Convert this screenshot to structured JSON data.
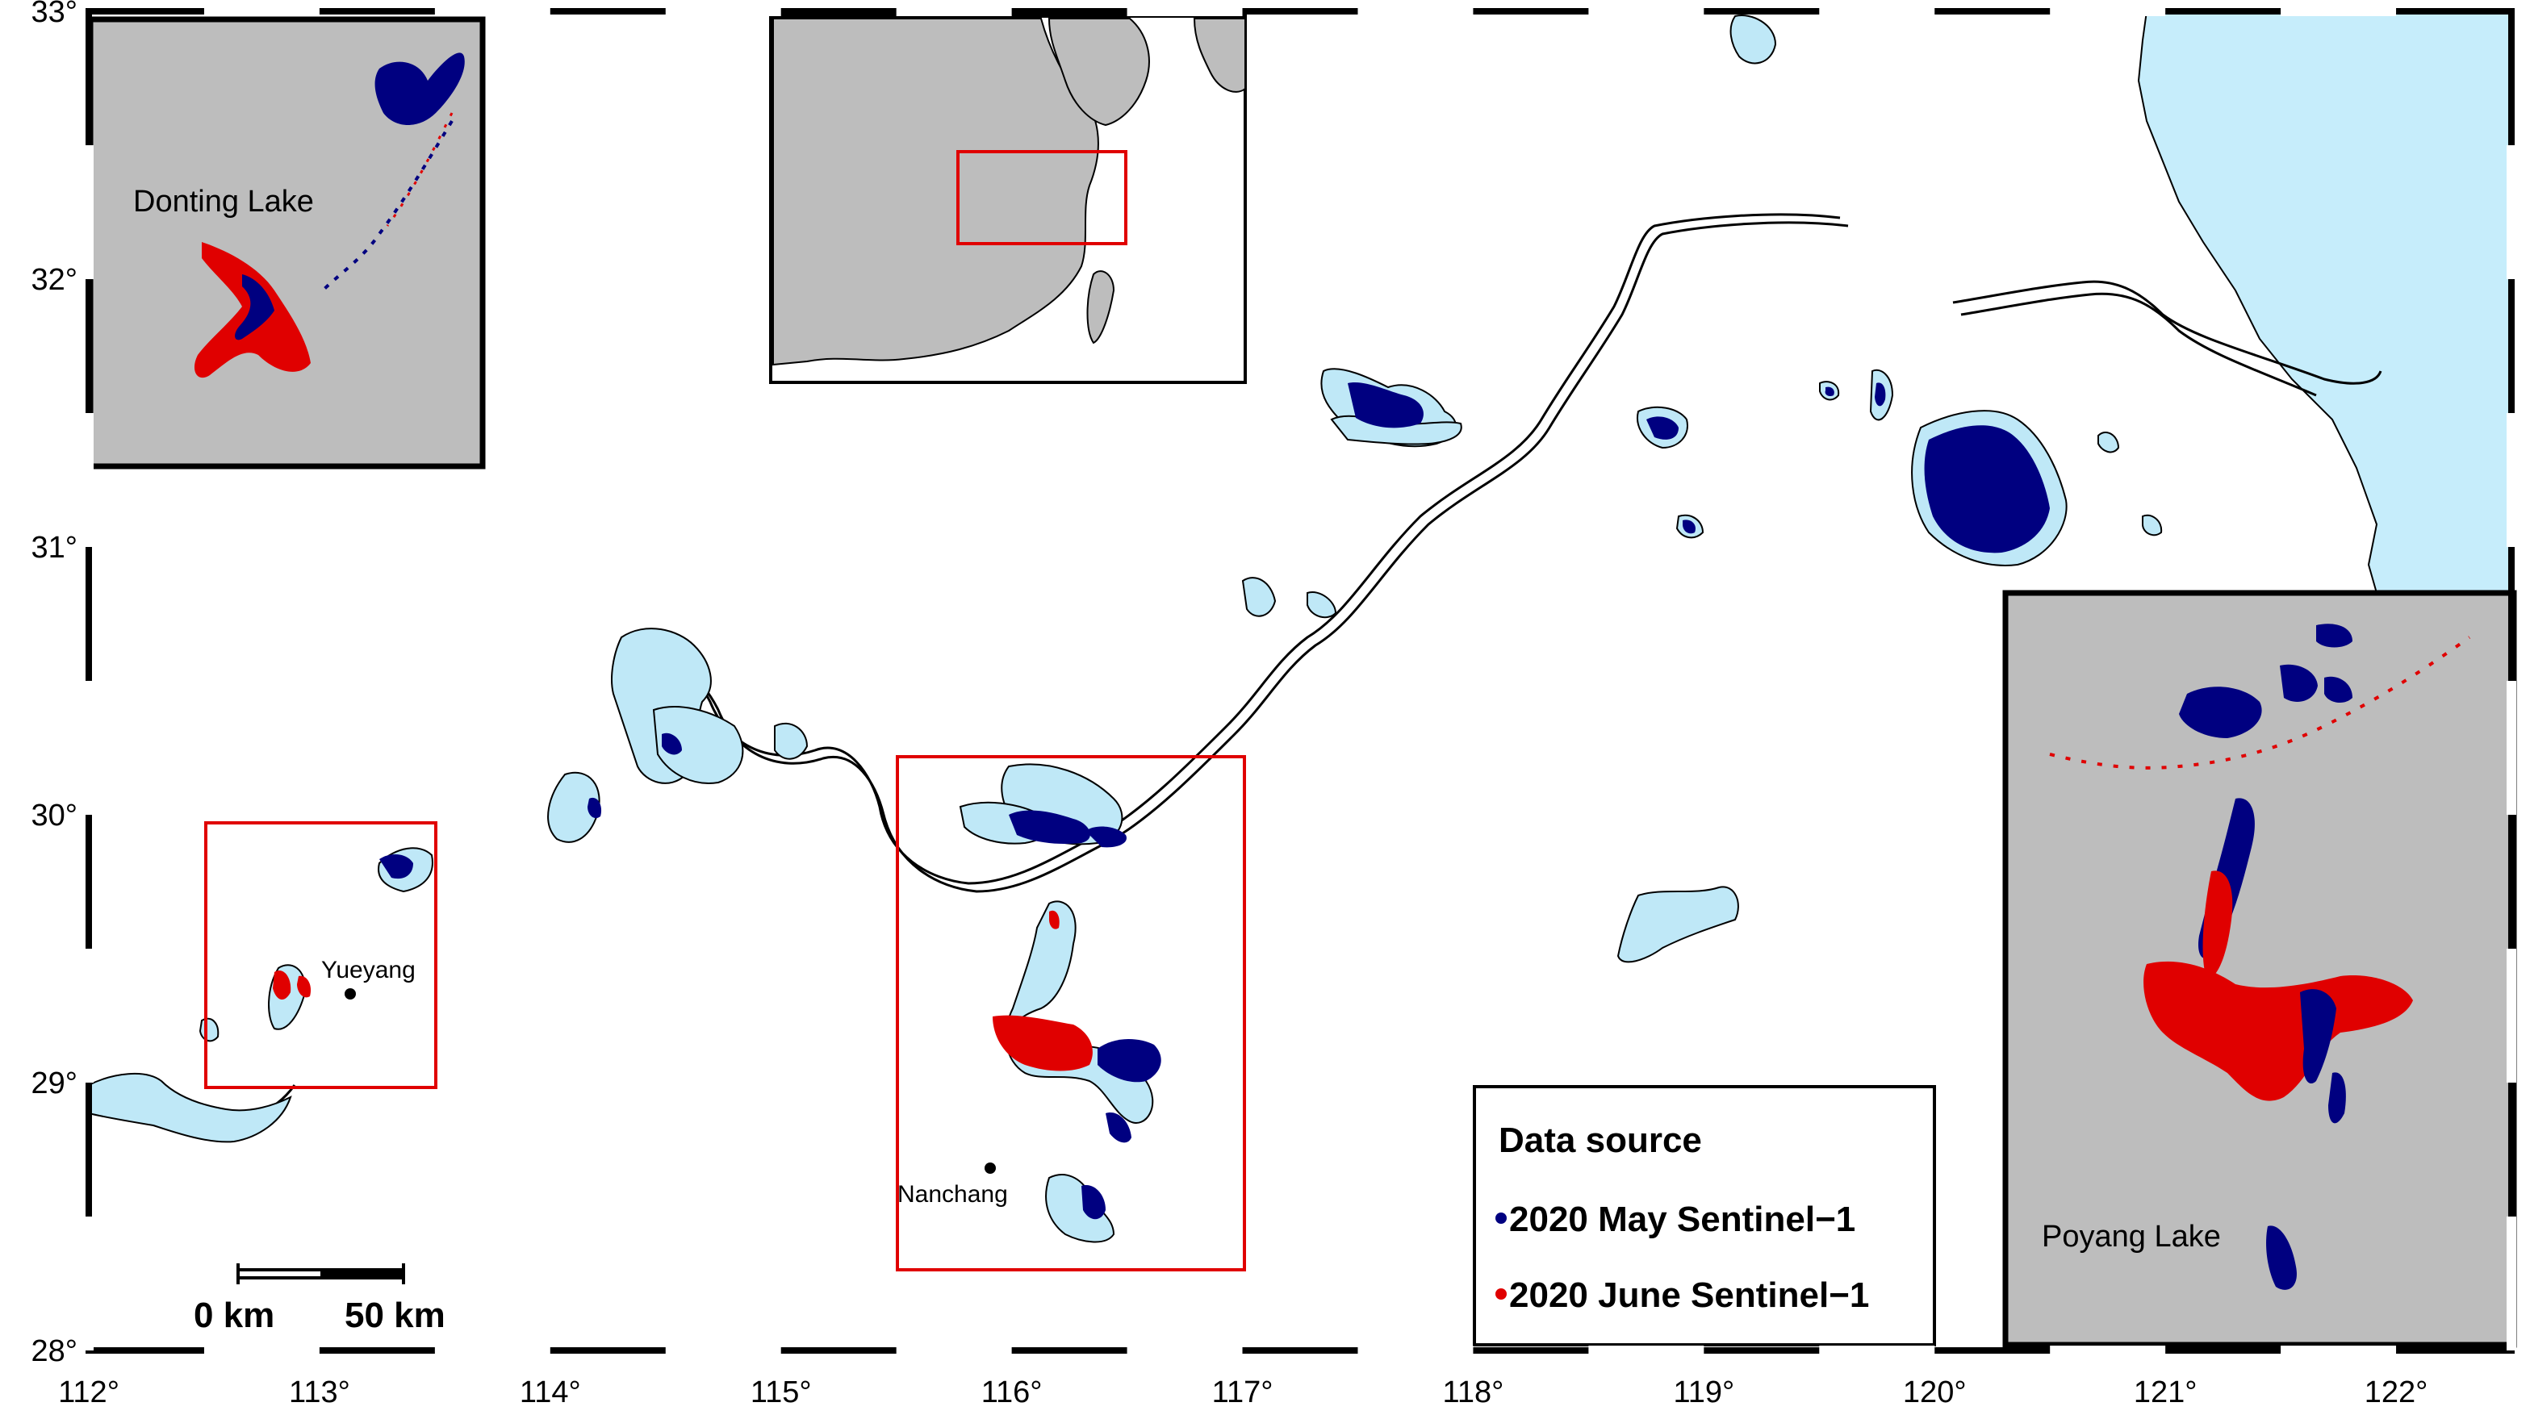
{
  "map": {
    "longitude_ticks": [
      "112°",
      "113°",
      "114°",
      "115°",
      "116°",
      "117°",
      "118°",
      "119°",
      "120°",
      "121°",
      "122°"
    ],
    "latitude_ticks": [
      "28°",
      "29°",
      "30°",
      "31°",
      "32°",
      "33°"
    ],
    "colors": {
      "water": "#bfe8f7",
      "sea": "#c6edfb",
      "may": "#000080",
      "june": "#e00000",
      "inset_bg": "#bdbdbd",
      "highlight_box": "#e00000"
    }
  },
  "labels": {
    "yueyang": "Yueyang",
    "nanchang": "Nanchang"
  },
  "insets": {
    "dongting_title": "Donting Lake",
    "poyang_title": "Poyang Lake"
  },
  "legend": {
    "title": "Data source",
    "items": [
      {
        "label": "2020 May Sentinel−1",
        "color": "#000080"
      },
      {
        "label": "2020 June Sentinel−1",
        "color": "#e00000"
      }
    ]
  },
  "scale_bar": {
    "label_start": "0 km",
    "label_end": "50 km"
  }
}
